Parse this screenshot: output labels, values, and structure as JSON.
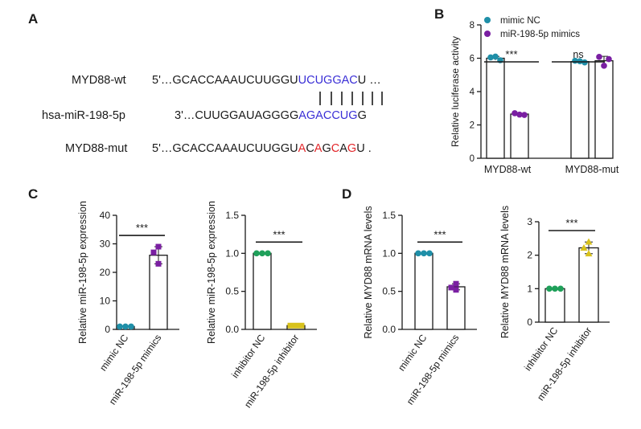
{
  "panels": {
    "A": "A",
    "B": "B",
    "C": "C",
    "D": "D"
  },
  "sequences": {
    "wt": {
      "label": "MYD88-wt",
      "prefix": "5'…GCACCAAAUCUUGGU",
      "site": "UCUGGAC",
      "suffix": "U …"
    },
    "mir": {
      "label": "hsa-miR-198-5p",
      "prefix": "3'…CUUGGAUAGGGG",
      "site": "AGACCUG",
      "suffix": "G"
    },
    "mut": {
      "label": "MYD88-mut",
      "segments": [
        {
          "t": "5'…GCACCAAAUCUUGGU",
          "c": ""
        },
        {
          "t": "A",
          "c": "red"
        },
        {
          "t": "C",
          "c": ""
        },
        {
          "t": "A",
          "c": "red"
        },
        {
          "t": "G",
          "c": ""
        },
        {
          "t": "C",
          "c": "red"
        },
        {
          "t": "A",
          "c": ""
        },
        {
          "t": "G",
          "c": "red"
        },
        {
          "t": "U .",
          "c": ""
        }
      ]
    }
  },
  "colors": {
    "teal": "#1f8fa8",
    "purple": "#7a1fa2",
    "green": "#1fa05a",
    "yellow": "#d8c21c",
    "blue_seq": "#3a2fd6",
    "red_seq": "#e3262a"
  },
  "chart_data": [
    {
      "id": "B",
      "type": "bar",
      "ylabel": "Relative luciferase activity",
      "ylim": [
        0,
        8
      ],
      "yticks": [
        0,
        2,
        4,
        6,
        8
      ],
      "groups": [
        "MYD88-wt",
        "MYD88-mut"
      ],
      "series": [
        {
          "name": "mimic NC",
          "color": "#1f8fa8",
          "values": [
            6.0,
            5.8
          ],
          "points": [
            [
              6.05,
              6.1,
              5.88
            ],
            [
              5.85,
              5.82,
              5.75
            ]
          ]
        },
        {
          "name": "miR-198-5p mimics",
          "color": "#7a1fa2",
          "values": [
            2.65,
            5.85
          ],
          "points": [
            [
              2.7,
              2.62,
              2.6
            ],
            [
              6.08,
              5.55,
              5.95
            ]
          ]
        }
      ],
      "legend": "top",
      "annotations": [
        "***",
        "ns"
      ]
    },
    {
      "id": "C1",
      "type": "bar",
      "ylabel": "Relative miR-198-5p expression",
      "ylim": [
        0,
        40
      ],
      "yticks": [
        0,
        10,
        20,
        30,
        40
      ],
      "categories": [
        "mimic NC",
        "miR-198-5p mimics"
      ],
      "values": [
        1.0,
        26
      ],
      "colors": [
        "#1f8fa8",
        "#7a1fa2"
      ],
      "points": [
        [
          1.0,
          1.0,
          1.0
        ],
        [
          29,
          27,
          23
        ]
      ],
      "annotation": "***"
    },
    {
      "id": "C2",
      "type": "bar",
      "ylabel": "Relative miR-198-5p expression",
      "ylim": [
        0,
        1.5
      ],
      "yticks": [
        0.0,
        0.5,
        1.0,
        1.5
      ],
      "categories": [
        "inhibitor NC",
        "miR-198-5p inhibitor"
      ],
      "values": [
        1.0,
        0.05
      ],
      "colors": [
        "#1fa05a",
        "#d8c21c"
      ],
      "points": [
        [
          1.0,
          1.0,
          1.0
        ],
        [
          0.05,
          0.05,
          0.05
        ]
      ],
      "annotation": "***"
    },
    {
      "id": "D1",
      "type": "bar",
      "ylabel": "Relative  MYD88 mRNA levels",
      "ylim": [
        0,
        1.5
      ],
      "yticks": [
        0.0,
        0.5,
        1.0,
        1.5
      ],
      "categories": [
        "mimic NC",
        "miR-198-5p mimics"
      ],
      "values": [
        1.0,
        0.56
      ],
      "colors": [
        "#1f8fa8",
        "#7a1fa2"
      ],
      "points": [
        [
          1.0,
          1.0,
          1.0
        ],
        [
          0.6,
          0.55,
          0.52
        ]
      ],
      "annotation": "***"
    },
    {
      "id": "D2",
      "type": "bar",
      "ylabel": "Relative  MYD88 mRNA levels",
      "ylim": [
        0,
        3
      ],
      "yticks": [
        0,
        1,
        2,
        3
      ],
      "categories": [
        "inhibitor NC",
        "miR-198-5p inhibitor"
      ],
      "values": [
        1.0,
        2.22
      ],
      "colors": [
        "#1fa05a",
        "#d8c21c"
      ],
      "points": [
        [
          1.0,
          1.0,
          1.0
        ],
        [
          2.4,
          2.22,
          2.05
        ]
      ],
      "annotation": "***"
    }
  ]
}
